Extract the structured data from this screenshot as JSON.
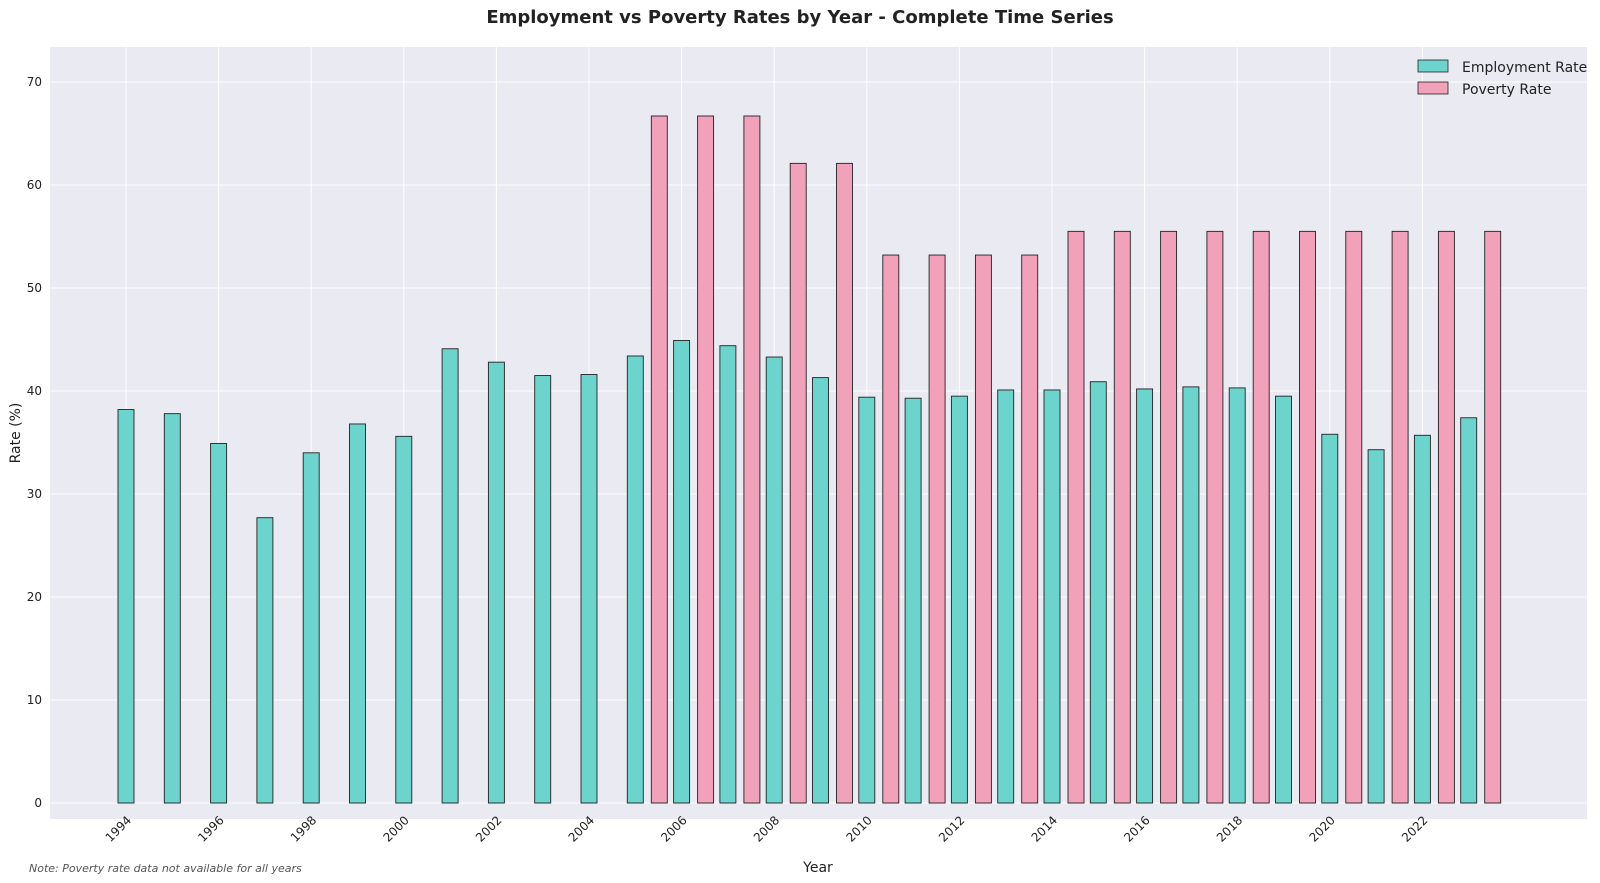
{
  "chart_data": {
    "type": "bar",
    "title": "Employment vs Poverty Rates by Year - Complete Time Series",
    "xlabel": "Year",
    "ylabel": "Rate (%)",
    "ylim": [
      0,
      73
    ],
    "yticks": [
      0,
      10,
      20,
      30,
      40,
      50,
      60,
      70
    ],
    "x": [
      1994,
      1995,
      1996,
      1997,
      1998,
      1999,
      2000,
      2001,
      2002,
      2003,
      2004,
      2005,
      2006,
      2007,
      2008,
      2009,
      2010,
      2011,
      2012,
      2013,
      2014,
      2015,
      2016,
      2017,
      2018,
      2019,
      2020,
      2021,
      2022,
      2023
    ],
    "xtick_labels": [
      "1994",
      "1996",
      "1998",
      "2000",
      "2002",
      "2004",
      "2006",
      "2008",
      "2010",
      "2012",
      "2014",
      "2016",
      "2018",
      "2020",
      "2022"
    ],
    "series": [
      {
        "name": "Employment Rate",
        "color": "#6dd3cd",
        "values": [
          38.2,
          37.8,
          34.9,
          27.7,
          34.0,
          36.8,
          35.6,
          44.1,
          42.8,
          41.5,
          41.6,
          43.4,
          44.9,
          44.4,
          43.3,
          41.3,
          39.4,
          39.3,
          39.5,
          40.1,
          40.1,
          40.9,
          40.2,
          40.4,
          40.3,
          39.5,
          35.8,
          34.3,
          35.7,
          37.4
        ]
      },
      {
        "name": "Poverty Rate",
        "color": "#f2a1ba",
        "values": [
          null,
          null,
          null,
          null,
          null,
          null,
          null,
          null,
          null,
          null,
          null,
          66.7,
          66.7,
          66.7,
          62.1,
          62.1,
          53.2,
          53.2,
          53.2,
          53.2,
          55.5,
          55.5,
          55.5,
          55.5,
          55.5,
          55.5,
          55.5,
          55.5,
          55.5,
          55.5
        ]
      }
    ],
    "grid": true,
    "legend_position": "top-right",
    "note": "Note: Poverty rate data not available for all years"
  }
}
